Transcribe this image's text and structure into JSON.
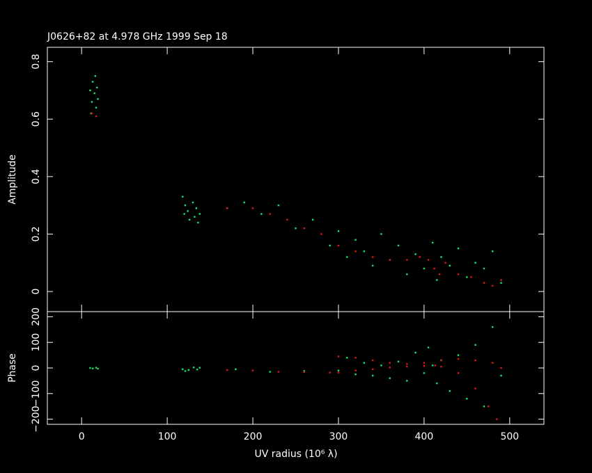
{
  "title": "J0626+82 at 4.978 GHz 1999 Sep 18",
  "colors": {
    "background": "#000000",
    "axes": "#ffffff",
    "model": "#e01818",
    "data": "#19e36c"
  },
  "chart_data": [
    {
      "type": "scatter",
      "panel": "amplitude",
      "ylabel": "Amplitude",
      "xlim": [
        -40,
        540
      ],
      "ylim": [
        -0.07,
        0.85
      ],
      "yticks": [
        0,
        0.2,
        0.4,
        0.6,
        0.8
      ],
      "ytick_labels": [
        "0",
        "0.2",
        "0.4",
        "0.6",
        "0.8"
      ],
      "series": [
        {
          "color": "data",
          "points": [
            [
              10,
              0.7
            ],
            [
              12,
              0.66
            ],
            [
              13,
              0.73
            ],
            [
              15,
              0.69
            ],
            [
              16,
              0.75
            ],
            [
              17,
              0.64
            ],
            [
              18,
              0.71
            ],
            [
              19,
              0.67
            ],
            [
              11,
              0.62
            ],
            [
              118,
              0.33
            ],
            [
              120,
              0.27
            ],
            [
              121,
              0.3
            ],
            [
              124,
              0.28
            ],
            [
              126,
              0.25
            ],
            [
              130,
              0.31
            ],
            [
              132,
              0.26
            ],
            [
              134,
              0.29
            ],
            [
              136,
              0.24
            ],
            [
              138,
              0.27
            ],
            [
              170,
              0.29
            ],
            [
              190,
              0.31
            ],
            [
              210,
              0.27
            ],
            [
              230,
              0.3
            ],
            [
              250,
              0.22
            ],
            [
              270,
              0.25
            ],
            [
              290,
              0.16
            ],
            [
              300,
              0.21
            ],
            [
              310,
              0.12
            ],
            [
              320,
              0.18
            ],
            [
              330,
              0.14
            ],
            [
              340,
              0.09
            ],
            [
              350,
              0.2
            ],
            [
              360,
              0.11
            ],
            [
              370,
              0.16
            ],
            [
              380,
              0.06
            ],
            [
              390,
              0.13
            ],
            [
              400,
              0.08
            ],
            [
              410,
              0.17
            ],
            [
              415,
              0.04
            ],
            [
              420,
              0.12
            ],
            [
              430,
              0.09
            ],
            [
              440,
              0.15
            ],
            [
              450,
              0.05
            ],
            [
              460,
              0.1
            ],
            [
              470,
              0.08
            ],
            [
              480,
              0.14
            ],
            [
              490,
              0.03
            ]
          ]
        },
        {
          "color": "model",
          "points": [
            [
              12,
              0.62
            ],
            [
              17,
              0.61
            ],
            [
              170,
              0.29
            ],
            [
              200,
              0.29
            ],
            [
              220,
              0.27
            ],
            [
              240,
              0.25
            ],
            [
              260,
              0.22
            ],
            [
              280,
              0.2
            ],
            [
              300,
              0.16
            ],
            [
              320,
              0.14
            ],
            [
              340,
              0.12
            ],
            [
              360,
              0.11
            ],
            [
              380,
              0.11
            ],
            [
              395,
              0.12
            ],
            [
              405,
              0.11
            ],
            [
              412,
              0.08
            ],
            [
              418,
              0.06
            ],
            [
              425,
              0.1
            ],
            [
              440,
              0.06
            ],
            [
              455,
              0.05
            ],
            [
              470,
              0.03
            ],
            [
              480,
              0.02
            ],
            [
              490,
              0.04
            ]
          ]
        }
      ]
    },
    {
      "type": "scatter",
      "panel": "phase",
      "xlabel": "UV radius  (10⁶ λ)",
      "ylabel": "Phase",
      "xlim": [
        -40,
        540
      ],
      "ylim": [
        -220,
        220
      ],
      "xticks": [
        0,
        100,
        200,
        300,
        400,
        500
      ],
      "xtick_labels": [
        "0",
        "100",
        "200",
        "300",
        "400",
        "500"
      ],
      "yticks": [
        -200,
        -100,
        0,
        100,
        200
      ],
      "ytick_labels": [
        "−200",
        "−100",
        "0",
        "100",
        "200"
      ],
      "series": [
        {
          "color": "data",
          "points": [
            [
              10,
              0
            ],
            [
              13,
              -2
            ],
            [
              17,
              1
            ],
            [
              19,
              -3
            ],
            [
              118,
              -5
            ],
            [
              121,
              -12
            ],
            [
              125,
              -8
            ],
            [
              131,
              2
            ],
            [
              135,
              -6
            ],
            [
              138,
              1
            ],
            [
              180,
              -5
            ],
            [
              220,
              -15
            ],
            [
              260,
              -12
            ],
            [
              300,
              -10
            ],
            [
              310,
              40
            ],
            [
              320,
              -25
            ],
            [
              330,
              20
            ],
            [
              340,
              -30
            ],
            [
              350,
              10
            ],
            [
              360,
              -40
            ],
            [
              370,
              25
            ],
            [
              380,
              -50
            ],
            [
              390,
              60
            ],
            [
              400,
              -20
            ],
            [
              405,
              80
            ],
            [
              410,
              10
            ],
            [
              415,
              -60
            ],
            [
              420,
              30
            ],
            [
              430,
              -90
            ],
            [
              440,
              50
            ],
            [
              450,
              -120
            ],
            [
              460,
              90
            ],
            [
              470,
              -150
            ],
            [
              480,
              160
            ],
            [
              490,
              -30
            ]
          ]
        },
        {
          "color": "model",
          "points": [
            [
              170,
              -8
            ],
            [
              200,
              -10
            ],
            [
              230,
              -15
            ],
            [
              260,
              -16
            ],
            [
              290,
              -18
            ],
            [
              300,
              -18
            ],
            [
              320,
              -10
            ],
            [
              340,
              -5
            ],
            [
              360,
              2
            ],
            [
              380,
              5
            ],
            [
              400,
              8
            ],
            [
              413,
              10
            ],
            [
              420,
              5
            ],
            [
              440,
              -20
            ],
            [
              460,
              -80
            ],
            [
              475,
              -150
            ],
            [
              485,
              -200
            ],
            [
              300,
              45
            ],
            [
              320,
              40
            ],
            [
              340,
              30
            ],
            [
              360,
              20
            ],
            [
              380,
              15
            ],
            [
              400,
              20
            ],
            [
              420,
              30
            ],
            [
              440,
              35
            ],
            [
              460,
              30
            ],
            [
              480,
              20
            ],
            [
              490,
              0
            ]
          ]
        }
      ]
    }
  ]
}
